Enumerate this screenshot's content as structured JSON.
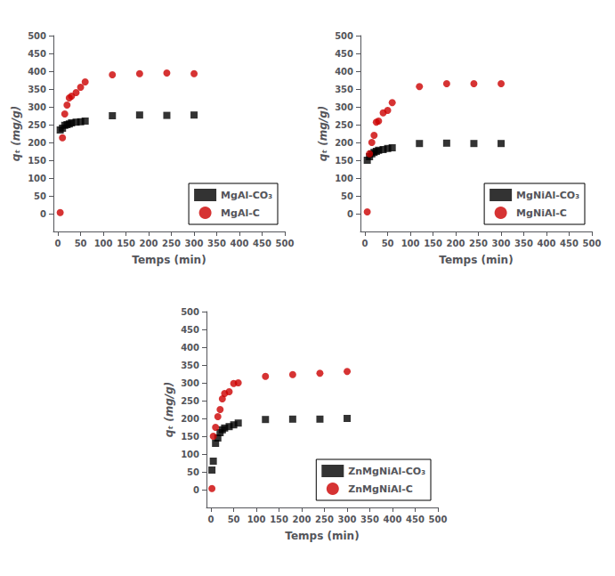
{
  "chart_data": [
    {
      "type": "scatter",
      "xlabel": "Temps (min)",
      "ylabel": "qₜ (mg/g)",
      "xlim": [
        -10,
        500
      ],
      "ylim": [
        -50,
        500
      ],
      "xticks": [
        0,
        50,
        100,
        150,
        200,
        250,
        300,
        350,
        400,
        450,
        500
      ],
      "yticks": [
        0,
        50,
        100,
        150,
        200,
        250,
        300,
        350,
        400,
        450,
        500
      ],
      "grid": false,
      "legend": "lower right",
      "series": [
        {
          "name": "MgAl-CO₃",
          "color": "#000000",
          "marker": "square",
          "x": [
            5,
            10,
            15,
            20,
            25,
            30,
            40,
            50,
            60,
            120,
            180,
            240,
            300
          ],
          "values": [
            235,
            240,
            248,
            250,
            252,
            255,
            257,
            258,
            260,
            275,
            277,
            276,
            277
          ]
        },
        {
          "name": "MgAl-C",
          "color": "#cc0000",
          "marker": "circle",
          "x": [
            5,
            10,
            15,
            20,
            25,
            30,
            40,
            50,
            60,
            120,
            180,
            240,
            300
          ],
          "values": [
            3,
            213,
            280,
            305,
            325,
            330,
            340,
            355,
            370,
            390,
            393,
            395,
            393
          ]
        }
      ]
    },
    {
      "type": "scatter",
      "xlabel": "Temps (min)",
      "ylabel": "qₜ (mg/g)",
      "xlim": [
        -10,
        500
      ],
      "ylim": [
        -50,
        500
      ],
      "xticks": [
        0,
        50,
        100,
        150,
        200,
        250,
        300,
        350,
        400,
        450,
        500
      ],
      "yticks": [
        0,
        50,
        100,
        150,
        200,
        250,
        300,
        350,
        400,
        450,
        500
      ],
      "grid": false,
      "legend": "lower right",
      "series": [
        {
          "name": "MgNiAl-CO₃",
          "color": "#000000",
          "marker": "square",
          "x": [
            5,
            10,
            15,
            20,
            25,
            30,
            40,
            50,
            60,
            120,
            180,
            240,
            300
          ],
          "values": [
            150,
            160,
            168,
            172,
            175,
            178,
            180,
            183,
            185,
            197,
            198,
            197,
            197
          ]
        },
        {
          "name": "MgNiAl-C",
          "color": "#cc0000",
          "marker": "circle",
          "x": [
            5,
            10,
            15,
            20,
            25,
            30,
            40,
            50,
            60,
            120,
            180,
            240,
            300
          ],
          "values": [
            5,
            168,
            200,
            220,
            257,
            260,
            283,
            290,
            312,
            357,
            365,
            365,
            365
          ]
        }
      ]
    },
    {
      "type": "scatter",
      "xlabel": "Temps (min)",
      "ylabel": "qₜ (mg/g)",
      "xlim": [
        -10,
        500
      ],
      "ylim": [
        -50,
        500
      ],
      "xticks": [
        0,
        50,
        100,
        150,
        200,
        250,
        300,
        350,
        400,
        450,
        500
      ],
      "yticks": [
        0,
        50,
        100,
        150,
        200,
        250,
        300,
        350,
        400,
        450,
        500
      ],
      "grid": false,
      "legend": "lower right",
      "series": [
        {
          "name": "ZnMgNiAl-CO₃",
          "color": "#000000",
          "marker": "square",
          "x": [
            2,
            5,
            10,
            15,
            20,
            25,
            30,
            40,
            50,
            60,
            120,
            180,
            240,
            300
          ],
          "values": [
            55,
            80,
            130,
            145,
            160,
            168,
            173,
            177,
            182,
            187,
            197,
            198,
            198,
            200
          ]
        },
        {
          "name": "ZnMgNiAl-C",
          "color": "#cc0000",
          "marker": "circle",
          "x": [
            2,
            5,
            10,
            15,
            20,
            25,
            30,
            40,
            50,
            60,
            120,
            180,
            240,
            300
          ],
          "values": [
            3,
            150,
            175,
            205,
            225,
            255,
            270,
            275,
            298,
            300,
            318,
            323,
            327,
            332
          ]
        }
      ]
    }
  ]
}
